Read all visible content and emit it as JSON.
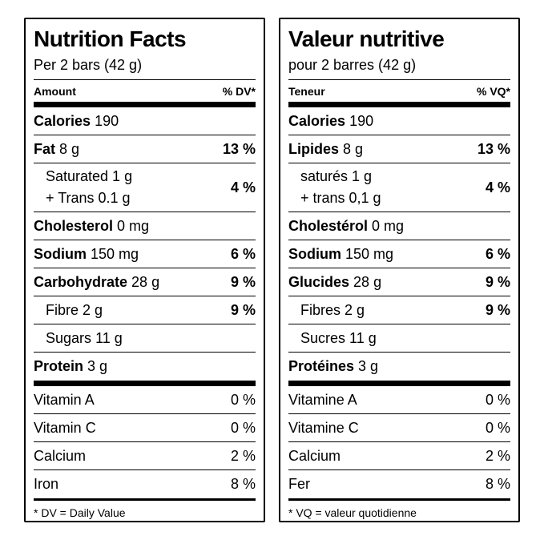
{
  "colors": {
    "text": "#000000",
    "background": "#ffffff",
    "rule": "#000000"
  },
  "panels": {
    "left": {
      "lang": "en",
      "title": "Nutrition Facts",
      "serving": "Per 2 bars (42 g)",
      "columns": {
        "amount": "Amount",
        "dv": "% DV*"
      },
      "rows": {
        "calories": {
          "name": "Calories",
          "amount": "190"
        },
        "fat": {
          "name": "Fat",
          "amount": "8 g",
          "dv": "13 %"
        },
        "saturated": {
          "line1": "Saturated 1 g",
          "line2": "+ Trans 0.1 g",
          "dv": "4 %"
        },
        "cholesterol": {
          "name": "Cholesterol",
          "amount": "0 mg"
        },
        "sodium": {
          "name": "Sodium",
          "amount": "150 mg",
          "dv": "6 %"
        },
        "carbohydrate": {
          "name": "Carbohydrate",
          "amount": "28 g",
          "dv": "9 %"
        },
        "fibre": {
          "name": "Fibre",
          "amount": "2 g",
          "dv": "9 %"
        },
        "sugars": {
          "name": "Sugars",
          "amount": "11 g"
        },
        "protein": {
          "name": "Protein",
          "amount": "3 g"
        },
        "vitamin_a": {
          "name": "Vitamin A",
          "dv": "0 %"
        },
        "vitamin_c": {
          "name": "Vitamin C",
          "dv": "0 %"
        },
        "calcium": {
          "name": "Calcium",
          "dv": "2 %"
        },
        "iron": {
          "name": "Iron",
          "dv": "8 %"
        }
      },
      "footnote": "* DV = Daily Value"
    },
    "right": {
      "lang": "fr",
      "title": "Valeur nutritive",
      "serving": "pour 2 barres (42 g)",
      "columns": {
        "amount": "Teneur",
        "dv": "% VQ*"
      },
      "rows": {
        "calories": {
          "name": "Calories",
          "amount": "190"
        },
        "fat": {
          "name": "Lipides",
          "amount": "8 g",
          "dv": "13 %"
        },
        "saturated": {
          "line1": "saturés 1 g",
          "line2": "+ trans 0,1 g",
          "dv": "4 %"
        },
        "cholesterol": {
          "name": "Cholestérol",
          "amount": "0 mg"
        },
        "sodium": {
          "name": "Sodium",
          "amount": "150 mg",
          "dv": "6 %"
        },
        "carbohydrate": {
          "name": "Glucides",
          "amount": "28 g",
          "dv": "9 %"
        },
        "fibre": {
          "name": "Fibres",
          "amount": "2 g",
          "dv": "9 %"
        },
        "sugars": {
          "name": "Sucres",
          "amount": "11 g"
        },
        "protein": {
          "name": "Protéines",
          "amount": "3 g"
        },
        "vitamin_a": {
          "name": "Vitamine A",
          "dv": "0 %"
        },
        "vitamin_c": {
          "name": "Vitamine C",
          "dv": "0 %"
        },
        "calcium": {
          "name": "Calcium",
          "dv": "2 %"
        },
        "iron": {
          "name": "Fer",
          "dv": "8 %"
        }
      },
      "footnote": "* VQ = valeur quotidienne"
    }
  }
}
